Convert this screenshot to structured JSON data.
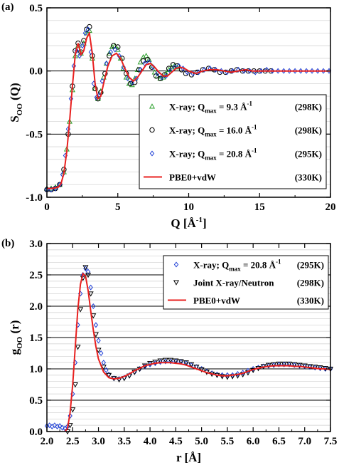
{
  "chart_data": [
    {
      "panel_label": "(a)",
      "type": "line",
      "xlabel_main": "Q [Å",
      "xlabel_sup": "-1",
      "xlabel_end": "]",
      "ylabel_main": "S",
      "ylabel_sub": "OO",
      "ylabel_end": " (Q)",
      "xlim": [
        0,
        20
      ],
      "ylim": [
        -1.0,
        0.5
      ],
      "xticks": [
        0,
        5,
        10,
        15,
        20
      ],
      "xtick_labels": [
        "0",
        "5",
        "10",
        "15",
        "20"
      ],
      "yticks": [
        -1.0,
        -0.5,
        0.0,
        0.5
      ],
      "ytick_labels": [
        "-1.0",
        "-0.5",
        "0.0",
        "0.5"
      ],
      "legend_position": "right",
      "series": [
        {
          "name": "X-ray; Q",
          "name_sub": "max",
          "name_val": " =   9.3 Å",
          "name_sup": "-1",
          "name_temp": "(298K)",
          "marker": "triangle",
          "color": "#2ca02c",
          "x": [
            0.0,
            0.3,
            0.6,
            0.9,
            1.2,
            1.4,
            1.6,
            1.8,
            2.0,
            2.2,
            2.4,
            2.6,
            2.8,
            3.0,
            3.2,
            3.4,
            3.6,
            3.8,
            4.0,
            4.2,
            4.4,
            4.6,
            4.8,
            5.0,
            5.2,
            5.4,
            5.6,
            5.8,
            6.0,
            6.2,
            6.4,
            6.6,
            6.8,
            7.0,
            7.2,
            7.4,
            7.6,
            7.8,
            8.0,
            8.2,
            8.4,
            8.6,
            8.8,
            9.0,
            9.2
          ],
          "y": [
            -0.93,
            -0.93,
            -0.92,
            -0.9,
            -0.8,
            -0.62,
            -0.4,
            -0.15,
            0.12,
            0.2,
            0.14,
            0.22,
            0.3,
            0.32,
            0.1,
            -0.14,
            -0.22,
            -0.16,
            -0.05,
            0.06,
            0.14,
            0.19,
            0.2,
            0.17,
            0.1,
            0.02,
            -0.05,
            -0.1,
            -0.11,
            -0.06,
            0.01,
            0.07,
            0.11,
            0.12,
            0.09,
            0.04,
            -0.01,
            -0.04,
            -0.06,
            -0.05,
            -0.02,
            0.01,
            0.03,
            0.04,
            0.03
          ]
        },
        {
          "name": "X-ray; Q",
          "name_sub": "max",
          "name_val": " = 16.0 Å",
          "name_sup": "-1",
          "name_temp": "(298K)",
          "marker": "circle",
          "color": "#000000",
          "x": [
            0.0,
            0.3,
            0.6,
            0.9,
            1.2,
            1.5,
            1.8,
            2.0,
            2.2,
            2.4,
            2.6,
            2.8,
            3.0,
            3.2,
            3.4,
            3.6,
            3.8,
            4.1,
            4.4,
            4.7,
            5.0,
            5.3,
            5.6,
            5.9,
            6.2,
            6.5,
            6.8,
            7.1,
            7.4,
            7.7,
            8.0,
            8.3,
            8.6,
            8.9,
            9.2,
            9.5,
            9.8,
            10.2,
            10.6,
            11.0,
            11.4,
            11.8,
            12.2,
            12.6,
            13.0,
            13.4,
            13.8,
            14.2,
            14.6,
            15.0,
            15.4,
            15.8
          ],
          "y": [
            -0.94,
            -0.94,
            -0.93,
            -0.9,
            -0.78,
            -0.5,
            -0.12,
            0.16,
            0.22,
            0.15,
            0.24,
            0.33,
            0.35,
            0.12,
            -0.14,
            -0.22,
            -0.17,
            -0.02,
            0.12,
            0.2,
            0.19,
            0.1,
            -0.02,
            -0.1,
            -0.09,
            0.01,
            0.08,
            0.09,
            0.03,
            -0.04,
            -0.06,
            -0.03,
            0.02,
            0.05,
            0.04,
            0.01,
            -0.02,
            -0.03,
            -0.01,
            0.01,
            0.02,
            0.01,
            -0.01,
            -0.01,
            0.0,
            0.01,
            0.0,
            0.0,
            0.0,
            0.0,
            0.0,
            0.0
          ]
        },
        {
          "name": "X-ray; Q",
          "name_sub": "max",
          "name_val": " = 20.8 Å",
          "name_sup": "-1",
          "name_temp": "(295K)",
          "marker": "diamond",
          "color": "#1f3fd6",
          "x": [
            0.0,
            0.3,
            0.6,
            0.9,
            1.1,
            1.3,
            1.5,
            1.7,
            1.9,
            2.1,
            2.3,
            2.5,
            2.7,
            2.9,
            3.1,
            3.3,
            3.5,
            3.7,
            3.9,
            4.2,
            4.5,
            4.8,
            5.1,
            5.4,
            5.7,
            6.0,
            6.3,
            6.6,
            6.9,
            7.2,
            7.5,
            7.8,
            8.1,
            8.4,
            8.7,
            9.0,
            9.3,
            9.6,
            9.9,
            10.3,
            10.7,
            11.1,
            11.5,
            11.9,
            12.3,
            12.7,
            13.1,
            13.5,
            13.9,
            14.3,
            14.7,
            15.1,
            15.5,
            15.9,
            16.3,
            16.7,
            17.1,
            17.5,
            17.9,
            18.3,
            18.7,
            19.1,
            19.5,
            19.9
          ],
          "y": [
            -0.94,
            -0.94,
            -0.93,
            -0.9,
            -0.82,
            -0.67,
            -0.46,
            -0.22,
            0.04,
            0.16,
            0.12,
            0.2,
            0.3,
            0.33,
            0.15,
            -0.1,
            -0.21,
            -0.19,
            -0.08,
            0.06,
            0.15,
            0.17,
            0.12,
            0.03,
            -0.06,
            -0.09,
            -0.06,
            0.01,
            0.06,
            0.07,
            0.03,
            -0.02,
            -0.05,
            -0.04,
            0.0,
            0.03,
            0.04,
            0.02,
            -0.01,
            -0.02,
            -0.01,
            0.01,
            0.02,
            0.01,
            0.0,
            -0.01,
            0.0,
            0.01,
            0.0,
            0.0,
            -0.01,
            0.0,
            0.01,
            0.0,
            0.0,
            0.0,
            0.0,
            0.0,
            0.0,
            0.0,
            0.0,
            0.0,
            0.0,
            0.0
          ]
        },
        {
          "name": "PBE0+vdW",
          "name_temp": "(330K)",
          "marker": "line",
          "color": "#e8201f",
          "x": [
            0.0,
            0.4,
            0.8,
            1.0,
            1.2,
            1.4,
            1.6,
            1.8,
            2.0,
            2.2,
            2.4,
            2.6,
            2.8,
            3.0,
            3.2,
            3.4,
            3.6,
            3.8,
            4.0,
            4.3,
            4.6,
            4.9,
            5.2,
            5.5,
            5.8,
            6.1,
            6.4,
            6.7,
            7.0,
            7.3,
            7.6,
            7.9,
            8.2,
            8.5,
            8.8,
            9.1,
            9.4,
            9.7,
            10.0,
            10.5,
            11.0,
            11.5,
            12.0,
            12.5,
            13.0,
            13.5,
            14.0,
            14.5,
            15.0,
            15.5,
            16.0,
            17.0,
            18.0,
            19.0,
            20.0
          ],
          "y": [
            -0.93,
            -0.93,
            -0.92,
            -0.89,
            -0.81,
            -0.64,
            -0.4,
            -0.12,
            0.13,
            0.22,
            0.13,
            0.16,
            0.26,
            0.3,
            0.14,
            -0.1,
            -0.22,
            -0.2,
            -0.1,
            0.04,
            0.12,
            0.14,
            0.1,
            0.02,
            -0.05,
            -0.08,
            -0.05,
            0.0,
            0.05,
            0.06,
            0.03,
            -0.01,
            -0.04,
            -0.04,
            -0.01,
            0.02,
            0.03,
            0.02,
            0.0,
            -0.02,
            0.0,
            0.01,
            0.01,
            0.0,
            -0.01,
            0.0,
            0.01,
            0.0,
            0.0,
            0.0,
            0.0,
            0.0,
            0.0,
            0.0,
            0.0
          ]
        }
      ]
    },
    {
      "panel_label": "(b)",
      "type": "line",
      "xlabel_main": "r [Å]",
      "ylabel_main": "g",
      "ylabel_sub": "OO",
      "ylabel_end": " (r)",
      "xlim": [
        2.0,
        7.5
      ],
      "ylim": [
        0.0,
        3.0
      ],
      "xticks": [
        2.0,
        2.5,
        3.0,
        3.5,
        4.0,
        4.5,
        5.0,
        5.5,
        6.0,
        6.5,
        7.0,
        7.5
      ],
      "xtick_labels": [
        "2.0",
        "2.5",
        "3.0",
        "3.5",
        "4.0",
        "4.5",
        "5.0",
        "5.5",
        "6.0",
        "6.5",
        "7.0",
        "7.5"
      ],
      "yticks": [
        0.0,
        0.5,
        1.0,
        1.5,
        2.0,
        2.5,
        3.0
      ],
      "ytick_labels": [
        "0.0",
        "0.5",
        "1.0",
        "1.5",
        "2.0",
        "2.5",
        "3.0"
      ],
      "legend_position": "top-right",
      "series": [
        {
          "name": "X-ray; Q",
          "name_sub": "max",
          "name_val": " = 20.8 Å",
          "name_sup": "-1",
          "name_temp": "(295K)",
          "marker": "diamond",
          "color": "#1f3fd6",
          "x": [
            2.0,
            2.05,
            2.1,
            2.15,
            2.2,
            2.25,
            2.3,
            2.35,
            2.4,
            2.45,
            2.5,
            2.55,
            2.6,
            2.65,
            2.7,
            2.75,
            2.8,
            2.85,
            2.9,
            2.95,
            3.0,
            3.05,
            3.1,
            3.15,
            3.2,
            3.3,
            3.4,
            3.5,
            3.6,
            3.7,
            3.8,
            3.9,
            4.0,
            4.1,
            4.2,
            4.3,
            4.4,
            4.5,
            4.6,
            4.7,
            4.8,
            4.9,
            5.0,
            5.1,
            5.2,
            5.3,
            5.4,
            5.5,
            5.6,
            5.7,
            5.8,
            5.9,
            6.0,
            6.1,
            6.2,
            6.3,
            6.4,
            6.5,
            6.6,
            6.7,
            6.8,
            6.9,
            7.0,
            7.1,
            7.2,
            7.3,
            7.4,
            7.5
          ],
          "y": [
            0.09,
            0.1,
            0.08,
            0.1,
            0.08,
            0.09,
            0.06,
            0.05,
            0.08,
            0.25,
            0.6,
            1.1,
            1.7,
            2.2,
            2.5,
            2.6,
            2.55,
            2.3,
            2.0,
            1.7,
            1.45,
            1.25,
            1.1,
            0.98,
            0.91,
            0.85,
            0.84,
            0.86,
            0.9,
            0.95,
            1.0,
            1.04,
            1.07,
            1.09,
            1.11,
            1.12,
            1.12,
            1.12,
            1.11,
            1.09,
            1.06,
            1.03,
            1.0,
            0.96,
            0.93,
            0.91,
            0.9,
            0.9,
            0.9,
            0.92,
            0.94,
            0.97,
            1.0,
            1.02,
            1.04,
            1.05,
            1.06,
            1.07,
            1.07,
            1.07,
            1.06,
            1.05,
            1.04,
            1.03,
            1.02,
            1.01,
            1.0,
            1.0
          ]
        },
        {
          "name": "Joint X-ray/Neutron",
          "name_temp": "(298K)",
          "marker": "triangle-down",
          "color": "#000000",
          "x": [
            2.4,
            2.45,
            2.5,
            2.55,
            2.6,
            2.65,
            2.7,
            2.75,
            2.8,
            2.85,
            2.9,
            2.95,
            3.0,
            3.1,
            3.2,
            3.3,
            3.4,
            3.5,
            3.6,
            3.7,
            3.8,
            3.9,
            4.0,
            4.1,
            4.2,
            4.3,
            4.4,
            4.5,
            4.6,
            4.7,
            4.8,
            4.9,
            5.0,
            5.1,
            5.2,
            5.3,
            5.4,
            5.5,
            5.6,
            5.7,
            5.8,
            5.9,
            6.0,
            6.1,
            6.2,
            6.3,
            6.4,
            6.5,
            6.6,
            6.7,
            6.8,
            6.9,
            7.0,
            7.1,
            7.2,
            7.3,
            7.4,
            7.5
          ],
          "y": [
            0.0,
            0.1,
            0.35,
            0.75,
            1.35,
            1.95,
            2.45,
            2.62,
            2.5,
            2.2,
            1.85,
            1.55,
            1.3,
            1.03,
            0.9,
            0.85,
            0.83,
            0.85,
            0.89,
            0.95,
            1.0,
            1.05,
            1.09,
            1.11,
            1.13,
            1.14,
            1.14,
            1.13,
            1.12,
            1.1,
            1.07,
            1.03,
            0.99,
            0.95,
            0.92,
            0.9,
            0.88,
            0.87,
            0.88,
            0.89,
            0.91,
            0.94,
            0.98,
            1.01,
            1.04,
            1.06,
            1.07,
            1.08,
            1.08,
            1.08,
            1.07,
            1.06,
            1.05,
            1.04,
            1.03,
            1.02,
            1.01,
            1.0
          ]
        },
        {
          "name": "PBE0+vdW",
          "name_temp": "(330K)",
          "marker": "line",
          "color": "#e8201f",
          "x": [
            2.35,
            2.4,
            2.45,
            2.5,
            2.55,
            2.6,
            2.65,
            2.7,
            2.75,
            2.8,
            2.85,
            2.9,
            2.95,
            3.0,
            3.1,
            3.2,
            3.3,
            3.4,
            3.5,
            3.6,
            3.7,
            3.8,
            3.9,
            4.0,
            4.1,
            4.2,
            4.3,
            4.4,
            4.5,
            4.6,
            4.7,
            4.8,
            4.9,
            5.0,
            5.1,
            5.2,
            5.3,
            5.4,
            5.5,
            5.6,
            5.7,
            5.8,
            5.9,
            6.0,
            6.1,
            6.2,
            6.3,
            6.4,
            6.5,
            6.6,
            6.7,
            6.8,
            6.9,
            7.0,
            7.1,
            7.2,
            7.3,
            7.4,
            7.5
          ],
          "y": [
            0.0,
            0.05,
            0.3,
            0.75,
            1.35,
            1.95,
            2.35,
            2.52,
            2.48,
            2.25,
            1.92,
            1.62,
            1.36,
            1.16,
            0.95,
            0.86,
            0.84,
            0.85,
            0.88,
            0.92,
            0.97,
            1.01,
            1.05,
            1.07,
            1.09,
            1.1,
            1.1,
            1.1,
            1.09,
            1.08,
            1.06,
            1.03,
            1.0,
            0.97,
            0.94,
            0.92,
            0.9,
            0.89,
            0.89,
            0.9,
            0.91,
            0.93,
            0.96,
            0.99,
            1.01,
            1.03,
            1.04,
            1.05,
            1.05,
            1.05,
            1.05,
            1.04,
            1.04,
            1.03,
            1.02,
            1.01,
            1.0,
            1.0,
            0.99
          ]
        }
      ]
    }
  ]
}
